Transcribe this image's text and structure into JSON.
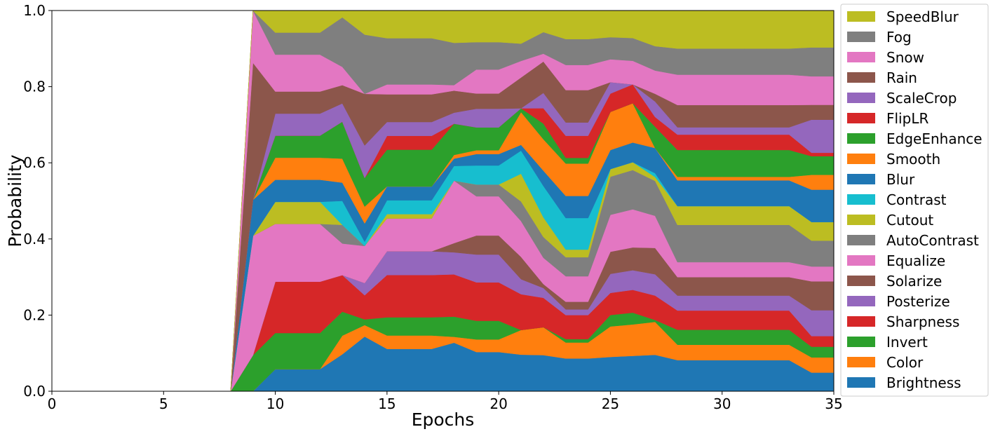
{
  "chart_data": {
    "type": "area",
    "stacked": true,
    "xlabel": "Epochs",
    "ylabel": "Probability",
    "xlim": [
      0,
      35
    ],
    "ylim": [
      0,
      1
    ],
    "xticks": [
      0,
      5,
      10,
      15,
      20,
      25,
      30,
      35
    ],
    "yticks": [
      0.0,
      0.2,
      0.4,
      0.6,
      0.8,
      1.0
    ],
    "xtick_labels": [
      "0",
      "5",
      "10",
      "15",
      "20",
      "25",
      "30",
      "35"
    ],
    "ytick_labels": [
      "0.0",
      "0.2",
      "0.4",
      "0.6",
      "0.8",
      "1.0"
    ],
    "grid": false,
    "legend_position": "outside-right",
    "x": [
      8,
      9,
      10,
      11,
      12,
      13,
      14,
      15,
      16,
      17,
      18,
      19,
      20,
      21,
      22,
      23,
      24,
      25,
      26,
      27,
      28,
      29,
      30,
      31,
      32,
      33,
      34,
      35
    ],
    "series": [
      {
        "name": "Brightness",
        "color": "#1f77b4",
        "values": [
          0,
          0,
          0.058,
          0.058,
          0.058,
          0.097,
          0.143,
          0.107,
          0.107,
          0.107,
          0.132,
          0.103,
          0.103,
          0.095,
          0.092,
          0.086,
          0.086,
          0.09,
          0.09,
          0.094,
          0.081,
          0.081,
          0.081,
          0.081,
          0.081,
          0.081,
          0.049,
          0.049
        ]
      },
      {
        "name": "Color",
        "color": "#ff7f0e",
        "values": [
          0,
          0,
          0,
          0,
          0,
          0.049,
          0.03,
          0.034,
          0.034,
          0.034,
          0.016,
          0.033,
          0.033,
          0.064,
          0.071,
          0.042,
          0.042,
          0.08,
          0.08,
          0.085,
          0.04,
          0.04,
          0.04,
          0.04,
          0.04,
          0.04,
          0.04,
          0.04
        ]
      },
      {
        "name": "Invert",
        "color": "#2ca02c",
        "values": [
          0,
          0.095,
          0.095,
          0.095,
          0.095,
          0.063,
          0.015,
          0.046,
          0.046,
          0.046,
          0.055,
          0.049,
          0.049,
          0,
          0,
          0.009,
          0.009,
          0.03,
          0.03,
          0.005,
          0.039,
          0.039,
          0.039,
          0.039,
          0.039,
          0.039,
          0.028,
          0.028
        ]
      },
      {
        "name": "Sharpness",
        "color": "#d62728",
        "values": [
          0,
          0,
          0.135,
          0.135,
          0.135,
          0.096,
          0.063,
          0.107,
          0.107,
          0.107,
          0.115,
          0.101,
          0.101,
          0.093,
          0.075,
          0.063,
          0.063,
          0.058,
          0.058,
          0.063,
          0.05,
          0.05,
          0.05,
          0.05,
          0.05,
          0.05,
          0.028,
          0.028
        ]
      },
      {
        "name": "Posterize",
        "color": "#9467bd",
        "values": [
          0,
          0,
          0,
          0,
          0,
          0,
          0.032,
          0.06,
          0.06,
          0.06,
          0.06,
          0.073,
          0.073,
          0.039,
          0.025,
          0.015,
          0.015,
          0.05,
          0.05,
          0.055,
          0.039,
          0.039,
          0.039,
          0.039,
          0.039,
          0.039,
          0.068,
          0.068
        ]
      },
      {
        "name": "Solarize",
        "color": "#8c564b",
        "values": [
          0,
          0,
          0,
          0,
          0,
          0,
          0,
          0,
          0,
          0,
          0.025,
          0.05,
          0.05,
          0.058,
          0.01,
          0.02,
          0.02,
          0.058,
          0.058,
          0.068,
          0.048,
          0.048,
          0.048,
          0.048,
          0.048,
          0.048,
          0.076,
          0.076
        ]
      },
      {
        "name": "Equalize",
        "color": "#e377c2",
        "values": [
          0,
          0.315,
          0.152,
          0.152,
          0.152,
          0.083,
          0.097,
          0.083,
          0.083,
          0.083,
          0.17,
          0.103,
          0.103,
          0.093,
          0.067,
          0.067,
          0.067,
          0.097,
          0.097,
          0.083,
          0.039,
          0.039,
          0.039,
          0.039,
          0.039,
          0.039,
          0.039,
          0.039
        ]
      },
      {
        "name": "AutoContrast",
        "color": "#7f7f7f",
        "values": [
          0,
          0,
          0,
          0,
          0,
          0.049,
          0,
          0,
          0,
          0,
          0,
          0.031,
          0.031,
          0.051,
          0.053,
          0.05,
          0.05,
          0.1,
          0.1,
          0.09,
          0.097,
          0.097,
          0.097,
          0.097,
          0.097,
          0.097,
          0.068,
          0.068
        ]
      },
      {
        "name": "Cutout",
        "color": "#bcbd22",
        "values": [
          0,
          0,
          0.058,
          0.058,
          0.058,
          0,
          0,
          0.011,
          0.011,
          0.011,
          0,
          0,
          0,
          0.072,
          0.05,
          0.02,
          0.02,
          0.02,
          0.02,
          0.01,
          0.049,
          0.049,
          0.049,
          0.049,
          0.049,
          0.049,
          0.049,
          0.049
        ]
      },
      {
        "name": "Contrast",
        "color": "#17becf",
        "values": [
          0,
          0,
          0,
          0,
          0,
          0.063,
          0.011,
          0.035,
          0.035,
          0.035,
          0.04,
          0.05,
          0.05,
          0.06,
          0.08,
          0.083,
          0.083,
          0,
          0,
          0.01,
          0,
          0,
          0,
          0,
          0,
          0,
          0,
          0
        ]
      },
      {
        "name": "Blur",
        "color": "#1f77b4",
        "values": [
          0,
          0.095,
          0.058,
          0.058,
          0.058,
          0.048,
          0.048,
          0.035,
          0.035,
          0.035,
          0.02,
          0.03,
          0.03,
          0.015,
          0.039,
          0.058,
          0.058,
          0.05,
          0.05,
          0.065,
          0.067,
          0.067,
          0.067,
          0.067,
          0.067,
          0.067,
          0.085,
          0.085
        ]
      },
      {
        "name": "Smooth",
        "color": "#ff7f0e",
        "values": [
          0,
          0,
          0.058,
          0.058,
          0.058,
          0.063,
          0.044,
          0,
          0,
          0,
          0.01,
          0.01,
          0.01,
          0.085,
          0.08,
          0.085,
          0.085,
          0.1,
          0.1,
          0,
          0.009,
          0.009,
          0.009,
          0.009,
          0.009,
          0.009,
          0.039,
          0.039
        ]
      },
      {
        "name": "EdgeEnhance",
        "color": "#2ca02c",
        "values": [
          0,
          0,
          0.058,
          0.058,
          0.058,
          0.097,
          0.075,
          0.093,
          0.093,
          0.093,
          0.085,
          0.06,
          0.06,
          0.01,
          0.04,
          0.015,
          0.015,
          0,
          0,
          0.055,
          0.07,
          0.07,
          0.07,
          0.07,
          0.07,
          0.07,
          0.049,
          0.049
        ]
      },
      {
        "name": "FlipLR",
        "color": "#d62728",
        "values": [
          0,
          0,
          0,
          0,
          0,
          0,
          0,
          0.035,
          0.035,
          0.035,
          0,
          0,
          0,
          0,
          0.039,
          0.058,
          0.058,
          0.048,
          0.048,
          0.025,
          0.04,
          0.04,
          0.04,
          0.04,
          0.04,
          0.04,
          0.009,
          0.009
        ]
      },
      {
        "name": "ScaleCrop",
        "color": "#9467bd",
        "values": [
          0,
          0,
          0.058,
          0.058,
          0.058,
          0.048,
          0.085,
          0.035,
          0.035,
          0.035,
          0.03,
          0.049,
          0.049,
          0,
          0.039,
          0.035,
          0.035,
          0.03,
          0,
          0.04,
          0.019,
          0.019,
          0.019,
          0.019,
          0.019,
          0.019,
          0.087,
          0.087
        ]
      },
      {
        "name": "Rain",
        "color": "#8c564b",
        "values": [
          0,
          0.362,
          0.058,
          0.058,
          0.058,
          0.048,
          0.135,
          0.07,
          0.07,
          0.07,
          0.06,
          0.04,
          0.04,
          0.08,
          0.08,
          0.085,
          0.085,
          0,
          0,
          0.02,
          0.058,
          0.058,
          0.058,
          0.058,
          0.058,
          0.058,
          0.039,
          0.039
        ]
      },
      {
        "name": "Snow",
        "color": "#e377c2",
        "values": [
          0,
          0.138,
          0.097,
          0.097,
          0.097,
          0.048,
          0,
          0.025,
          0.025,
          0.025,
          0.015,
          0.063,
          0.063,
          0.043,
          0.02,
          0.066,
          0.066,
          0.06,
          0.06,
          0.06,
          0.079,
          0.079,
          0.079,
          0.079,
          0.079,
          0.079,
          0.075,
          0.075
        ]
      },
      {
        "name": "Fog",
        "color": "#7f7f7f",
        "values": [
          0,
          0,
          0.058,
          0.058,
          0.058,
          0.13,
          0.155,
          0.117,
          0.117,
          0.117,
          0.115,
          0.072,
          0.072,
          0.045,
          0.055,
          0.068,
          0.068,
          0.058,
          0.058,
          0.063,
          0.068,
          0.068,
          0.068,
          0.068,
          0.068,
          0.068,
          0.076,
          0.076
        ]
      },
      {
        "name": "SpeedBlur",
        "color": "#bcbd22",
        "values": [
          0,
          0,
          0.058,
          0.058,
          0.058,
          0.018,
          0.063,
          0.07,
          0.07,
          0.07,
          0.088,
          0.083,
          0.083,
          0.086,
          0.055,
          0.075,
          0.075,
          0.07,
          0.07,
          0.092,
          0.099,
          0.099,
          0.099,
          0.099,
          0.099,
          0.099,
          0.097,
          0.097
        ]
      }
    ]
  }
}
